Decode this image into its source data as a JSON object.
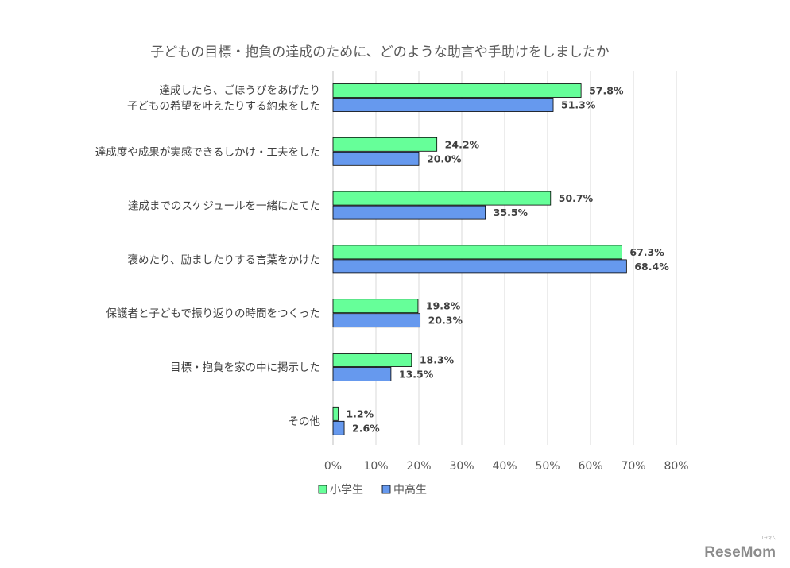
{
  "chart_data": {
    "type": "bar",
    "orientation": "horizontal",
    "title": "子どもの目標・抱負の達成のために、どのような助言や手助けをしましたか",
    "categories": [
      [
        "達成したら、ごほうびをあげたり",
        "子どもの希望を叶えたりする約束をした"
      ],
      [
        "達成度や成果が実感できるしかけ・工夫をした"
      ],
      [
        "達成までのスケジュールを一緒にたてた"
      ],
      [
        "褒めたり、励ましたりする言葉をかけた"
      ],
      [
        "保護者と子どもで振り返りの時間をつくった"
      ],
      [
        "目標・抱負を家の中に掲示した"
      ],
      [
        "その他"
      ]
    ],
    "series": [
      {
        "name": "小学生",
        "color": "#66ff99",
        "values": [
          57.8,
          24.2,
          50.7,
          67.3,
          19.8,
          18.3,
          1.2
        ]
      },
      {
        "name": "中高生",
        "color": "#6699ee",
        "values": [
          51.3,
          20.0,
          35.5,
          68.4,
          20.3,
          13.5,
          2.6
        ]
      }
    ],
    "xlim": [
      0,
      80
    ],
    "xticks": [
      0,
      10,
      20,
      30,
      40,
      50,
      60,
      70,
      80
    ],
    "tick_suffix": "%",
    "value_suffix": "%",
    "grid": true,
    "legend_position": "bottom-left"
  },
  "watermark": {
    "brand": "ReseMom",
    "sub": "リセマム"
  }
}
